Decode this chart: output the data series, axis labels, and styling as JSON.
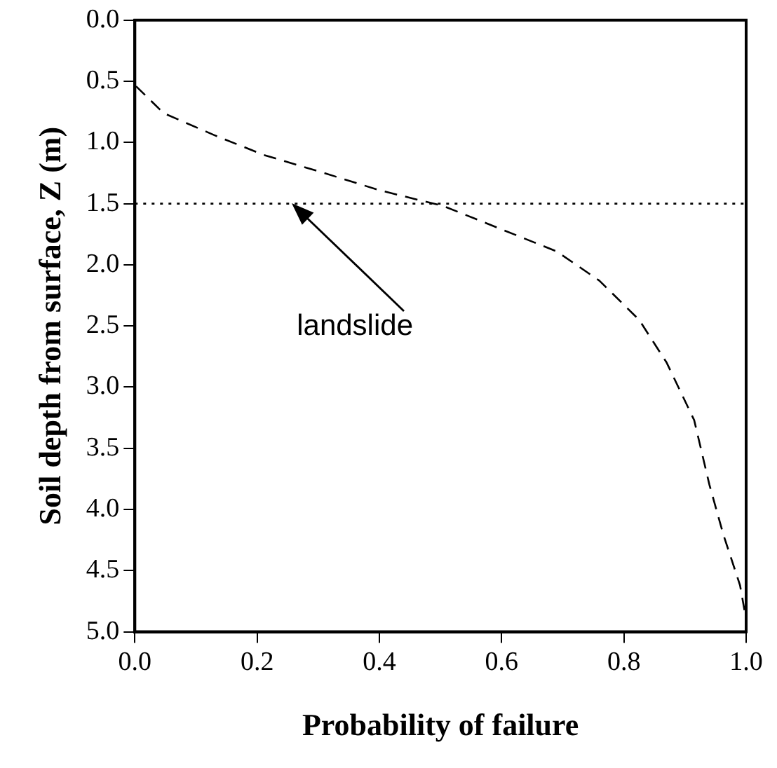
{
  "chart_data": {
    "type": "line",
    "xlabel": "Probability of failure",
    "ylabel": "Soil depth from surface, Z (m)",
    "x": [
      0.002,
      0.047,
      0.13,
      0.21,
      0.31,
      0.4,
      0.505,
      0.595,
      0.69,
      0.76,
      0.825,
      0.87,
      0.915,
      0.94,
      0.963,
      0.99,
      1.0
    ],
    "series": [
      {
        "color": "#000000",
        "values": [
          0.54,
          0.76,
          0.94,
          1.1,
          1.25,
          1.39,
          1.52,
          1.7,
          1.89,
          2.13,
          2.45,
          2.8,
          3.27,
          3.8,
          4.21,
          4.62,
          4.9
        ]
      }
    ],
    "xlim": [
      0,
      1
    ],
    "xticks": [
      {
        "value": 0,
        "label": "0.0"
      },
      0.2,
      0.4,
      0.6,
      0.8,
      {
        "value": 1,
        "label": "1.0"
      }
    ],
    "ylim": [
      5,
      0
    ],
    "yticks": [
      {
        "value": 0,
        "label": "0.0"
      },
      0.5,
      {
        "value": 1,
        "label": "1.0"
      },
      1.5,
      {
        "value": 2,
        "label": "2.0"
      },
      2.5,
      {
        "value": 3,
        "label": "3.0"
      },
      3.5,
      {
        "value": 4,
        "label": "4.0"
      },
      4.5,
      {
        "value": 5,
        "label": "5.0"
      }
    ],
    "ref_lines": [
      {
        "axis": "y",
        "value": 1.5,
        "line_style": "dotted",
        "color": "#000000"
      }
    ],
    "annotations": [
      "landslide"
    ],
    "line_style": "dashed",
    "marker": "none",
    "grid": false,
    "legend": false
  }
}
